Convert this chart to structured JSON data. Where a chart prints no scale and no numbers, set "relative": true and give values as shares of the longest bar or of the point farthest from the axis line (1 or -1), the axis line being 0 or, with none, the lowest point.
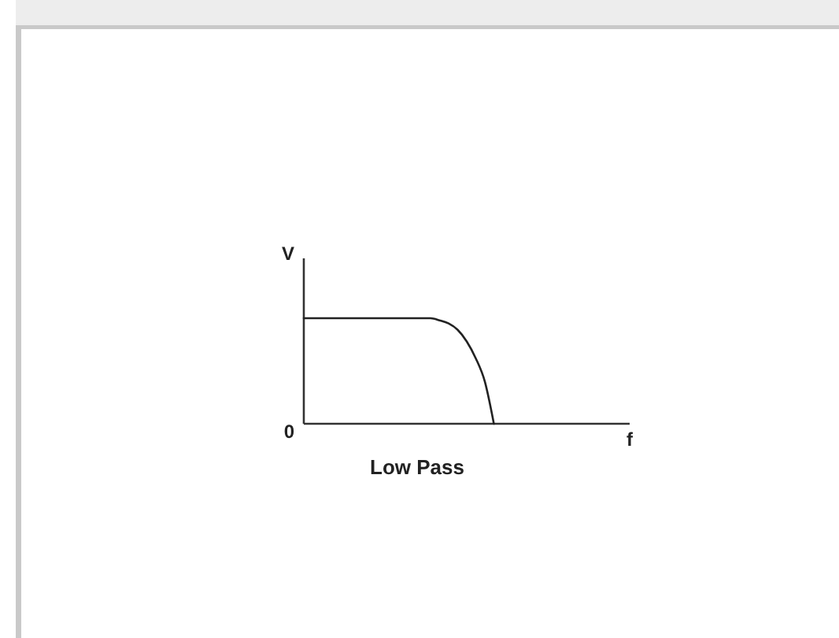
{
  "chart_data": {
    "type": "line",
    "title": "Low Pass",
    "xlabel": "f",
    "ylabel": "V",
    "relative": true,
    "color": "#222222",
    "annotations": [
      "0"
    ],
    "categories": [
      null,
      null,
      null,
      null,
      null,
      null,
      null,
      null,
      null,
      null,
      null,
      null,
      null,
      null,
      null,
      null,
      null,
      null,
      null,
      null,
      null,
      null,
      null,
      null,
      null,
      null,
      null,
      null,
      null,
      null,
      null,
      null,
      null,
      null,
      null,
      null,
      null
    ],
    "values": [
      1,
      1,
      1,
      1,
      1,
      1,
      1,
      1,
      1,
      1,
      1,
      1,
      1,
      1,
      1,
      0.98,
      0.95,
      0.89,
      0.78,
      0.62,
      0.4,
      0,
      null,
      null,
      null,
      null,
      null,
      null,
      null,
      null,
      null,
      null,
      null,
      null,
      null,
      null,
      null
    ]
  }
}
